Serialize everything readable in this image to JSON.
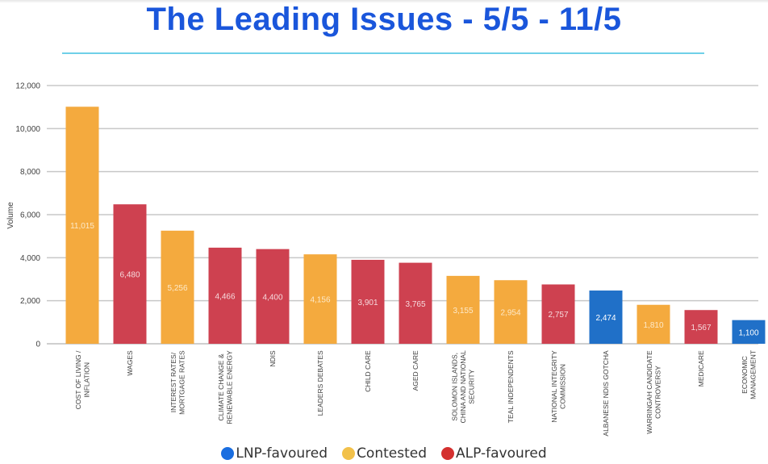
{
  "header": {
    "title": "The Leading Issues - 5/5 - 11/5"
  },
  "chart_data": {
    "type": "bar",
    "title": "The Leading Issues - 5/5 - 11/5",
    "xlabel": "",
    "ylabel": "Volume",
    "ylim": [
      0,
      12000
    ],
    "yticks": [
      0,
      2000,
      4000,
      6000,
      8000,
      10000,
      12000
    ],
    "ytick_labels": [
      "0",
      "2,000",
      "4,000",
      "6,000",
      "8,000",
      "10,000",
      "12,000"
    ],
    "grid": true,
    "legend_position": "bottom-center",
    "categories": [
      [
        "COST OF LIVING /",
        "INFLATION"
      ],
      [
        "WAGES"
      ],
      [
        "INTEREST RATES/",
        "MORTGAGE RATES"
      ],
      [
        "CLIMATE CHANGE &",
        "RENEWABLE ENERGY"
      ],
      [
        "NDIS"
      ],
      [
        "LEADERS DEBATES"
      ],
      [
        "CHILD CARE"
      ],
      [
        "AGED CARE"
      ],
      [
        "SOLOMON ISLANDS,",
        "CHINA AND NATIONAL",
        "SECURITY"
      ],
      [
        "TEAL INDEPENDENTS"
      ],
      [
        "NATIONAL INTEGRITY",
        "COMMISSION"
      ],
      [
        "ALBANESE NDIS GOTCHA"
      ],
      [
        "WARRINGAH CANDIDATE",
        "CONTROVERSY"
      ],
      [
        "MEDICARE"
      ],
      [
        "ECONOMIC",
        "MANAGEMENT"
      ]
    ],
    "values": [
      11015,
      6480,
      5256,
      4466,
      4400,
      4156,
      3901,
      3765,
      3155,
      2954,
      2757,
      2474,
      1810,
      1567,
      1100
    ],
    "value_labels": [
      "11,015",
      "6,480",
      "5,256",
      "4,466",
      "4,400",
      "4,156",
      "3,901",
      "3,765",
      "3,155",
      "2,954",
      "2,757",
      "2,474",
      "1,810",
      "1,567",
      "1,100"
    ],
    "groups": [
      "Contested",
      "ALP-favoured",
      "Contested",
      "ALP-favoured",
      "ALP-favoured",
      "Contested",
      "ALP-favoured",
      "ALP-favoured",
      "Contested",
      "Contested",
      "ALP-favoured",
      "LNP-favoured",
      "Contested",
      "ALP-favoured",
      "LNP-favoured"
    ],
    "group_colors": {
      "LNP-favoured": "#2070c8",
      "Contested": "#f4aa3e",
      "ALP-favoured": "#ce4150"
    },
    "label_colors": {
      "LNP-favoured": "#ffffff",
      "Contested": "#fde9c8",
      "ALP-favoured": "#f6dadd"
    },
    "legend": [
      {
        "label": "LNP-favoured",
        "color": "#1a6ee0"
      },
      {
        "label": "Contested",
        "color": "#f2c14a"
      },
      {
        "label": "ALP-favoured",
        "color": "#d4302f"
      }
    ]
  }
}
